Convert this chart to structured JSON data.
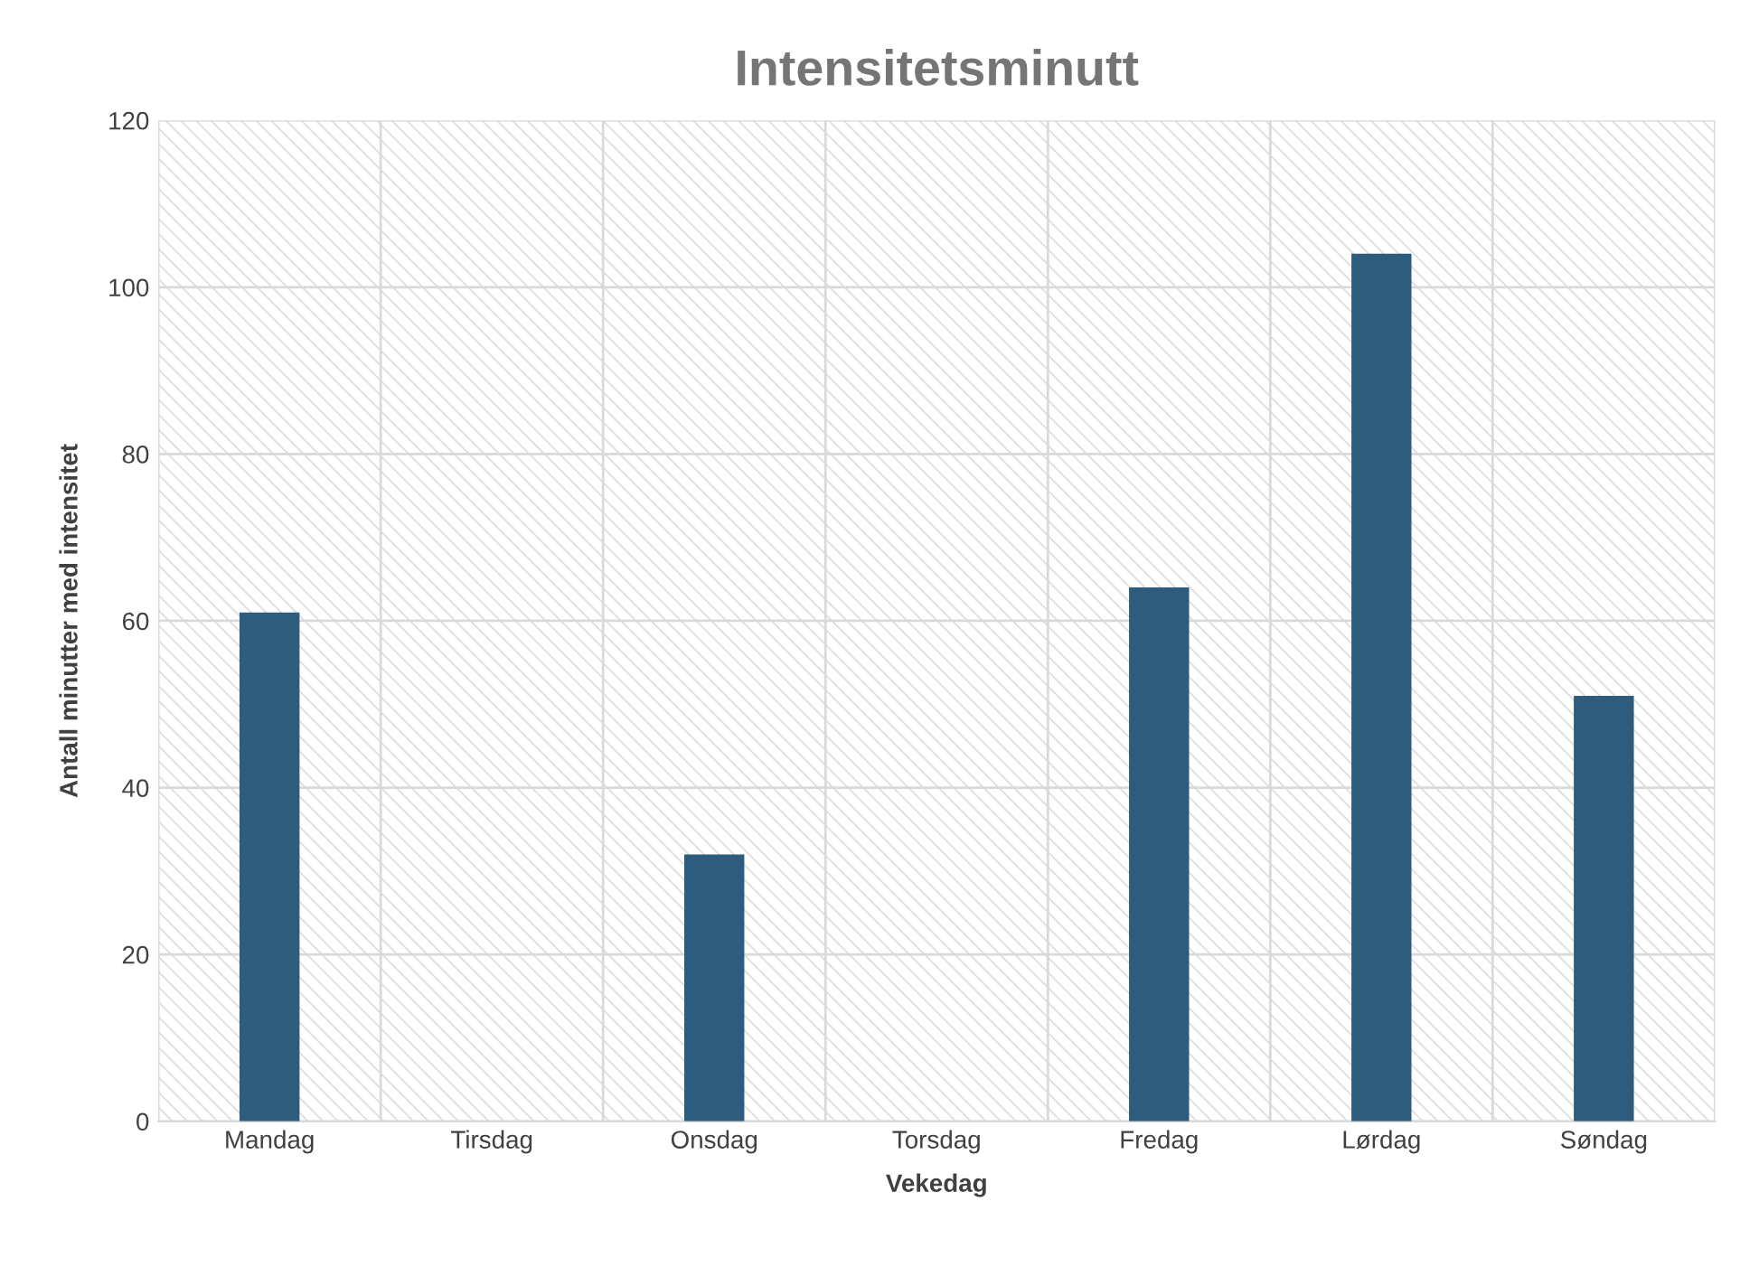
{
  "chart_data": {
    "type": "bar",
    "title": "Intensitetsminutt",
    "xlabel": "Vekedag",
    "ylabel": "Antall minutter med intensitet",
    "categories": [
      "Mandag",
      "Tirsdag",
      "Onsdag",
      "Torsdag",
      "Fredag",
      "Lørdag",
      "Søndag"
    ],
    "values": [
      61,
      0,
      32,
      0,
      64,
      104,
      51
    ],
    "color": "#2e5c7e",
    "ylim": [
      0,
      120
    ],
    "yticks": [
      0,
      20,
      40,
      60,
      80,
      100,
      120
    ],
    "grid": true,
    "legend": false
  }
}
